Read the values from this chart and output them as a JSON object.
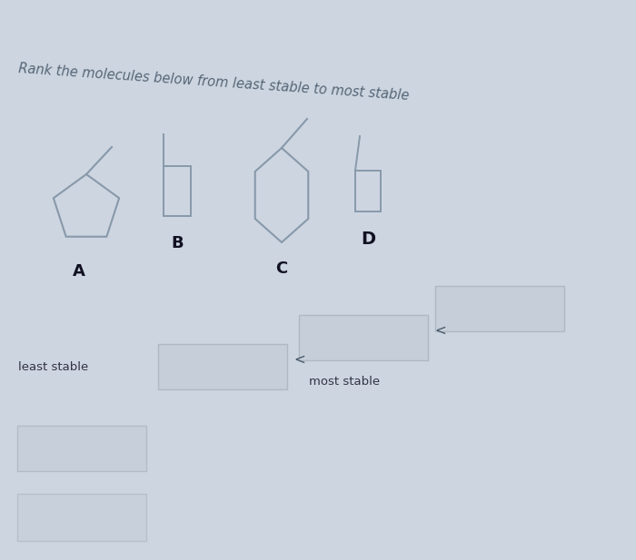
{
  "title": "Rank the molecules below from least stable to most stable",
  "bg_color": "#cdd5e0",
  "shape_color": "#8899aa",
  "text_color": "#222233",
  "label_color": "#333344",
  "box_facecolor": "#c5cdd8",
  "box_edgecolor": "#aab5c0",
  "least_stable_label": "least stable",
  "most_stable_label": "most stable"
}
